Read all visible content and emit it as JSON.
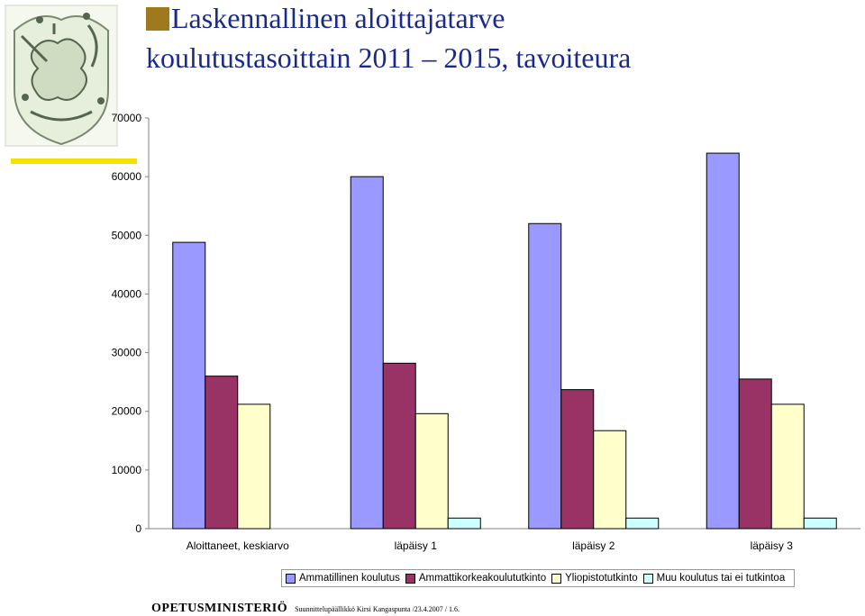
{
  "title": {
    "line1": "Laskennallinen aloittajatarve",
    "line2": "koulutustasoittain 2011 – 2015, tavoiteura"
  },
  "colors": {
    "title": "#1a2a8c",
    "bullet": "#a0781e",
    "accent_bar": "#f5e000"
  },
  "logo": {
    "icon": "lion-coat-of-arms-icon"
  },
  "footer": {
    "org": "OPETUSMINISTERIÖ",
    "note": "Suunnittelupäällikkö Kirsi Kangaspunta /23.4.2007 / 1.6."
  },
  "chart_data": {
    "type": "bar",
    "categories": [
      "Aloittaneet, keskiarvo",
      "läpäisy 1",
      "läpäisy 2",
      "läpäisy 3"
    ],
    "series": [
      {
        "name": "Ammatillinen koulutus",
        "color": "#9999ff",
        "values": [
          48800,
          60000,
          52000,
          64000
        ]
      },
      {
        "name": "Ammattikorkeakoulututkinto",
        "color": "#993366",
        "values": [
          26000,
          28200,
          23700,
          25500
        ]
      },
      {
        "name": "Yliopistotutkinto",
        "color": "#ffffcc",
        "values": [
          21200,
          19600,
          16700,
          21200
        ]
      },
      {
        "name": "Muu koulutus tai ei tutkintoa",
        "color": "#ccffff",
        "values": [
          0,
          1800,
          1800,
          1800
        ]
      }
    ],
    "ylim": [
      0,
      70000
    ],
    "yticks": [
      0,
      10000,
      20000,
      30000,
      40000,
      50000,
      60000,
      70000
    ],
    "grid": false,
    "legend": "bottom"
  }
}
